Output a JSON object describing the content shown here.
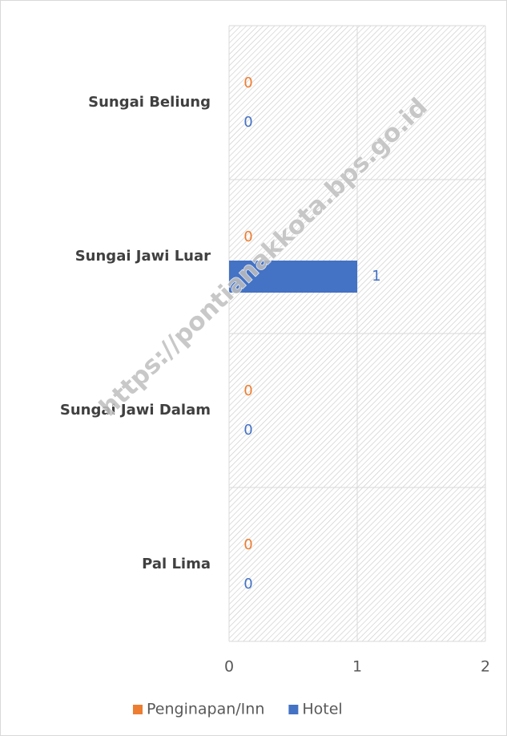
{
  "chart_data": {
    "type": "bar",
    "orientation": "horizontal",
    "categories": [
      "Sungai Beliung",
      "Sungai Jawi Luar",
      "Sungai Jawi Dalam",
      "Pal Lima"
    ],
    "series": [
      {
        "name": "Penginapan/Inn",
        "color": "#ed7d31",
        "values": [
          0,
          0,
          0,
          0
        ]
      },
      {
        "name": "Hotel",
        "color": "#4472c4",
        "values": [
          0,
          1,
          0,
          0
        ]
      }
    ],
    "xlim": [
      0,
      2
    ],
    "xticks": [
      0,
      1,
      2
    ],
    "grid": true,
    "legend": "bottom",
    "watermark": "https://pontianakkota.bps.go.id"
  }
}
